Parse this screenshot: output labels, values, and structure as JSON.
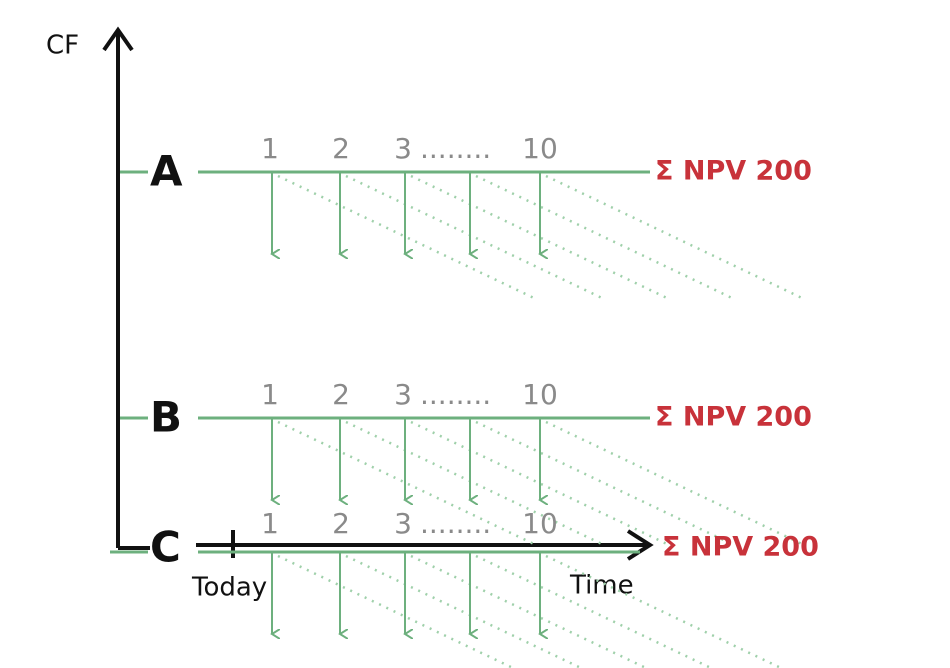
{
  "axis": {
    "y_label": "CF",
    "x_label": "Time",
    "today_label": "Today"
  },
  "rows": [
    {
      "label": "A",
      "periods": [
        "1",
        "2",
        "3",
        "10"
      ],
      "ellipsis": "........",
      "npv": "Σ NPV 200"
    },
    {
      "label": "B",
      "periods": [
        "1",
        "2",
        "3",
        "10"
      ],
      "ellipsis": "........",
      "npv": "Σ NPV 200"
    },
    {
      "label": "C",
      "periods": [
        "1",
        "2",
        "3",
        "10"
      ],
      "ellipsis": "........",
      "npv": "Σ NPV 200"
    }
  ]
}
